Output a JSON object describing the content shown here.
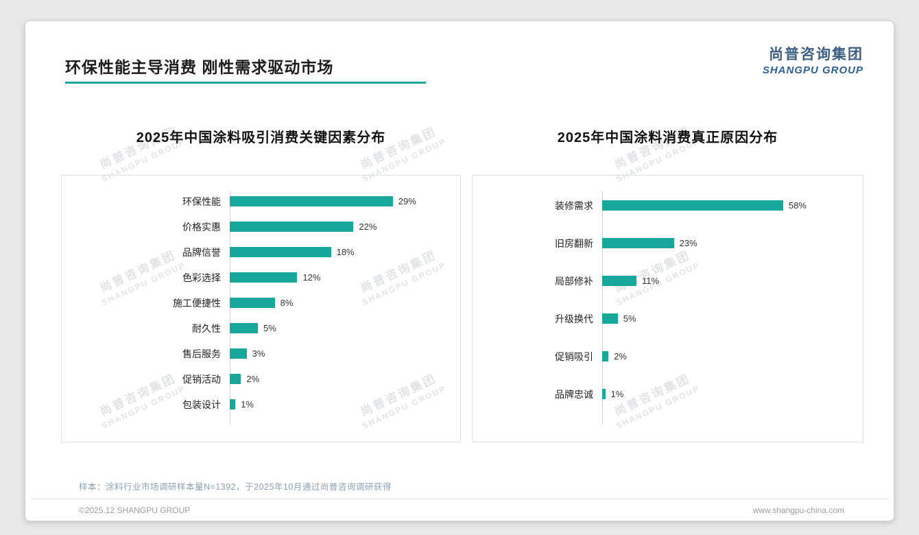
{
  "page": {
    "title": "环保性能主导消费 刚性需求驱动市场",
    "logo": {
      "cn": "尚普咨询集团",
      "en": "SHANGPU GROUP"
    },
    "watermark": {
      "cn": "尚普咨询集团",
      "en": "SHANGPU GROUP"
    },
    "footer": {
      "note": "样本：涂料行业市场调研样本量N=1392，于2025年10月通过尚普咨询调研获得",
      "copyright": "©2025.12 SHANGPU GROUP",
      "website": "www.shangpu-china.com"
    }
  },
  "colors": {
    "accent": "#17a79b",
    "logo_cn": "#3c5e82",
    "logo_en": "#2d5f97"
  },
  "chart_data": [
    {
      "type": "bar",
      "orientation": "horizontal",
      "title": "2025年中国涂料吸引消费关键因素分布",
      "categories": [
        "环保性能",
        "价格实惠",
        "品牌信誉",
        "色彩选择",
        "施工便捷性",
        "耐久性",
        "售后服务",
        "促销活动",
        "包装设计"
      ],
      "values": [
        29,
        22,
        18,
        12,
        8,
        5,
        3,
        2,
        1
      ],
      "unit": "%",
      "xlim": [
        0,
        32
      ],
      "grid": false,
      "legend": "none",
      "value_labels": "outside-end"
    },
    {
      "type": "bar",
      "orientation": "horizontal",
      "title": "2025年中国涂料消费真正原因分布",
      "categories": [
        "装修需求",
        "旧房翻新",
        "局部修补",
        "升级换代",
        "促销吸引",
        "品牌忠诚"
      ],
      "values": [
        58,
        23,
        11,
        5,
        2,
        1
      ],
      "unit": "%",
      "xlim": [
        0,
        64
      ],
      "grid": false,
      "legend": "none",
      "value_labels": "outside-end"
    }
  ]
}
